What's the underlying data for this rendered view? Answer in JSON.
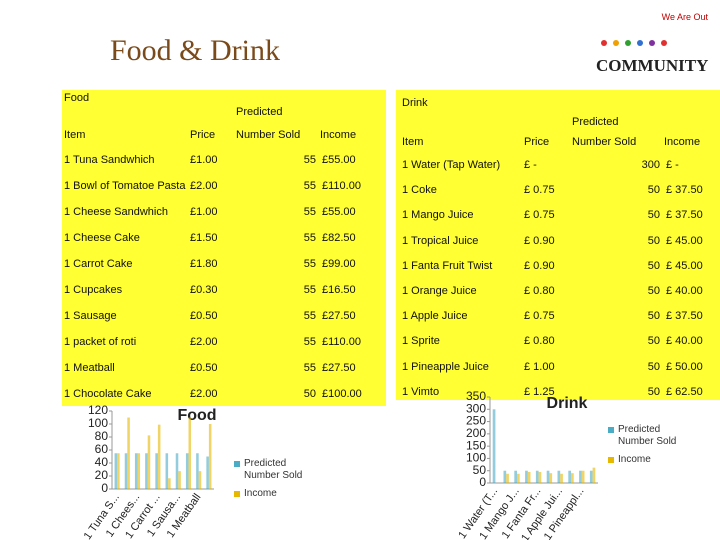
{
  "header": {
    "tag": "We Are Out",
    "title": "Food & Drink",
    "logo": "COMMUNITY"
  },
  "food_table": {
    "title": "Food",
    "group_header": "Predicted",
    "columns": [
      "Item",
      "Price",
      "Number Sold",
      "Income"
    ],
    "rows": [
      [
        "1 Tuna Sandwhich",
        "£1.00",
        "55",
        "£55.00"
      ],
      [
        "1 Bowl of Tomatoe Pasta",
        "£2.00",
        "55",
        "£110.00"
      ],
      [
        "1 Cheese Sandwhich",
        "£1.00",
        "55",
        "£55.00"
      ],
      [
        "1 Cheese Cake",
        "£1.50",
        "55",
        "£82.50"
      ],
      [
        "1 Carrot Cake",
        "£1.80",
        "55",
        "£99.00"
      ],
      [
        "1 Cupcakes",
        "£0.30",
        "55",
        "£16.50"
      ],
      [
        "1 Sausage",
        "£0.50",
        "55",
        "£27.50"
      ],
      [
        "1 packet of roti",
        "£2.00",
        "55",
        "£110.00"
      ],
      [
        "1 Meatball",
        "£0.50",
        "55",
        "£27.50"
      ],
      [
        "1 Chocolate Cake",
        "£2.00",
        "50",
        "£100.00"
      ]
    ]
  },
  "drink_table": {
    "title": "Drink",
    "group_header": "Predicted",
    "columns": [
      "Item",
      "Price",
      "Number Sold",
      "Income"
    ],
    "rows": [
      [
        "1 Water (Tap Water)",
        "£ -",
        "300",
        "£ -"
      ],
      [
        "1 Coke",
        "£ 0.75",
        "50",
        "£ 37.50"
      ],
      [
        "1 Mango Juice",
        "£ 0.75",
        "50",
        "£ 37.50"
      ],
      [
        "1 Tropical Juice",
        "£ 0.90",
        "50",
        "£ 45.00"
      ],
      [
        "1 Fanta Fruit Twist",
        "£ 0.90",
        "50",
        "£ 45.00"
      ],
      [
        "1 Orange Juice",
        "£ 0.80",
        "50",
        "£ 40.00"
      ],
      [
        "1 Apple Juice",
        "£ 0.75",
        "50",
        "£ 37.50"
      ],
      [
        "1 Sprite",
        "£ 0.80",
        "50",
        "£ 40.00"
      ],
      [
        "1 Pineapple Juice",
        "£ 1.00",
        "50",
        "£ 50.00"
      ],
      [
        "1 Vimto",
        "£ 1.25",
        "50",
        "£ 62.50"
      ]
    ]
  },
  "chart_data": [
    {
      "type": "bar",
      "title": "Food",
      "categories": [
        "1 Tuna S...",
        null,
        "1 Chees...",
        null,
        "1 Carrot ...",
        null,
        "1 Sausa...",
        null,
        "1 Meatball",
        null
      ],
      "series": [
        {
          "name": "Predicted Number Sold",
          "color": "#4bacc6",
          "values": [
            55,
            55,
            55,
            55,
            55,
            55,
            55,
            55,
            55,
            50
          ]
        },
        {
          "name": "Income",
          "color": "#e6b800",
          "values": [
            55,
            110,
            55,
            82.5,
            99,
            16.5,
            27.5,
            110,
            27.5,
            100
          ]
        }
      ],
      "ylim": [
        0,
        120
      ],
      "yticks": [
        0,
        20,
        40,
        60,
        80,
        100,
        120
      ],
      "grid": false,
      "legend": "right"
    },
    {
      "type": "bar",
      "title": "Drink",
      "categories": [
        "1 Water (T...",
        null,
        "1 Mango J...",
        null,
        "1 Fanta Fr...",
        null,
        "1 Apple Jui...",
        null,
        "1 Pineappl...",
        null
      ],
      "series": [
        {
          "name": "Predicted Number Sold",
          "color": "#4bacc6",
          "values": [
            300,
            50,
            50,
            50,
            50,
            50,
            50,
            50,
            50,
            50
          ]
        },
        {
          "name": "Income",
          "color": "#e6b800",
          "values": [
            0,
            37.5,
            37.5,
            45,
            45,
            40,
            37.5,
            40,
            50,
            62.5
          ]
        }
      ],
      "ylim": [
        0,
        350
      ],
      "yticks": [
        0,
        50,
        100,
        150,
        200,
        250,
        300,
        350
      ],
      "grid": false,
      "legend": "right"
    }
  ]
}
